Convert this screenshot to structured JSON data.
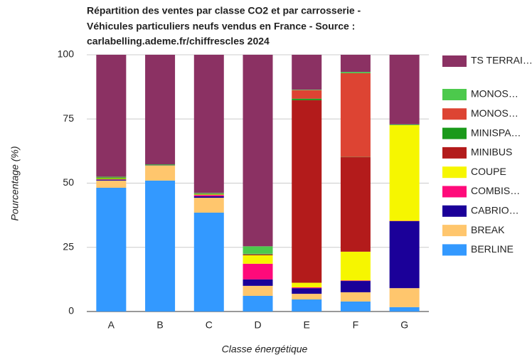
{
  "chart_data": {
    "type": "stacked_bar",
    "title": [
      "Répartition des ventes par classe CO2 et par carrosserie -",
      "Véhicules particuliers neufs vendus en France - Source :",
      "carlabelling.ademe.fr/chiffrescles 2024"
    ],
    "xlabel": "Classe énergétique",
    "ylabel": "Pourcentage (%)",
    "categories": [
      "A",
      "B",
      "C",
      "D",
      "E",
      "F",
      "G"
    ],
    "series": [
      {
        "name": "BERLINE",
        "color": "#3399ff",
        "values": [
          48.2,
          51,
          38.5,
          6.1,
          4.7,
          3.9,
          1.7
        ]
      },
      {
        "name": "BREAK",
        "color": "#ffc66d",
        "values": [
          2.8,
          5.8,
          5.8,
          3.9,
          2.2,
          3.6,
          7.4
        ]
      },
      {
        "name": "CABRIO…",
        "color": "#1b0099",
        "values": [
          0.4,
          0.1,
          0.6,
          2.5,
          2.2,
          4.4,
          26.1
        ]
      },
      {
        "name": "COMBIS…",
        "color": "#ff0a7a",
        "values": [
          0.1,
          0,
          0.5,
          6.1,
          0.3,
          0.2,
          0.1
        ]
      },
      {
        "name": "COUPE",
        "color": "#f6f600",
        "values": [
          0.3,
          0.1,
          0.2,
          3.3,
          1.8,
          11.2,
          37.3
        ]
      },
      {
        "name": "MINIBUS",
        "color": "#b31b1b",
        "values": [
          0,
          0,
          0,
          0.3,
          71.1,
          36.8,
          0
        ]
      },
      {
        "name": "MINISPA…",
        "color": "#1a9a1a",
        "values": [
          0.3,
          0.2,
          0.3,
          0.2,
          0.6,
          0.1,
          0.1
        ]
      },
      {
        "name": "MONOS…",
        "color": "#dd4433",
        "values": [
          0.1,
          0,
          0.1,
          0.1,
          3.3,
          32.6,
          0
        ]
      },
      {
        "name": "MONOS…",
        "color": "#4cc94c",
        "values": [
          0.3,
          0.1,
          0.2,
          2.9,
          0.2,
          0.5,
          0.2
        ]
      },
      {
        "name": "TS TERRAI…",
        "color": "#8b3163",
        "values": [
          47.5,
          42.7,
          53.8,
          74.6,
          13.6,
          6.7,
          27.1
        ]
      }
    ],
    "ylim": [
      0,
      100
    ],
    "yticks": [
      0,
      25,
      50,
      75,
      100
    ],
    "grid": true,
    "legend": "right"
  }
}
